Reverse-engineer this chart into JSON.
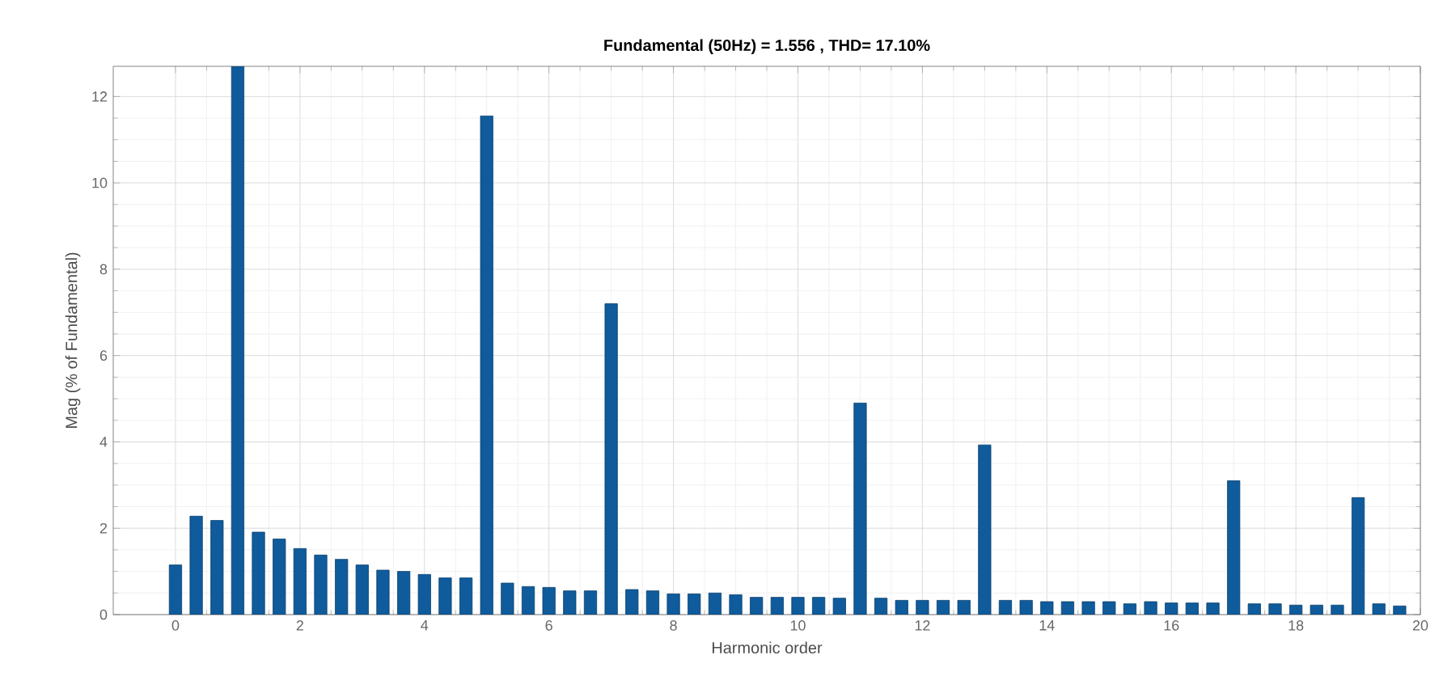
{
  "chart_data": {
    "type": "bar",
    "title": "Fundamental (50Hz) = 1.556 , THD= 17.10%",
    "xlabel": "Harmonic order",
    "ylabel": "Mag (% of Fundamental)",
    "x": [
      0,
      0.333,
      0.667,
      1,
      1.333,
      1.667,
      2,
      2.333,
      2.667,
      3,
      3.333,
      3.667,
      4,
      4.333,
      4.667,
      5,
      5.333,
      5.667,
      6,
      6.333,
      6.667,
      7,
      7.333,
      7.667,
      8,
      8.333,
      8.667,
      9,
      9.333,
      9.667,
      10,
      10.333,
      10.667,
      11,
      11.333,
      11.667,
      12,
      12.333,
      12.667,
      13,
      13.333,
      13.667,
      14,
      14.333,
      14.667,
      15,
      15.333,
      15.667,
      16,
      16.333,
      16.667,
      17,
      17.333,
      17.667,
      18,
      18.333,
      18.667,
      19,
      19.333,
      19.667
    ],
    "values": [
      1.15,
      2.28,
      2.18,
      12.7,
      1.91,
      1.75,
      1.53,
      1.38,
      1.28,
      1.15,
      1.03,
      1.0,
      0.93,
      0.85,
      0.85,
      11.55,
      0.73,
      0.65,
      0.63,
      0.55,
      0.55,
      7.2,
      0.58,
      0.55,
      0.48,
      0.48,
      0.5,
      0.46,
      0.4,
      0.4,
      0.4,
      0.4,
      0.38,
      4.9,
      0.38,
      0.33,
      0.33,
      0.33,
      0.33,
      3.93,
      0.33,
      0.33,
      0.3,
      0.3,
      0.3,
      0.3,
      0.25,
      0.3,
      0.27,
      0.27,
      0.27,
      3.1,
      0.25,
      0.25,
      0.22,
      0.22,
      0.22,
      2.71,
      0.25,
      0.2
    ],
    "color": "#0f5b9c",
    "xlim": [
      -1,
      20
    ],
    "xticks": [
      0,
      2,
      4,
      6,
      8,
      10,
      12,
      14,
      16,
      18,
      20
    ],
    "ylim": [
      0,
      12.7
    ],
    "yticks": [
      0,
      2,
      4,
      6,
      8,
      10,
      12
    ],
    "grid": true
  }
}
